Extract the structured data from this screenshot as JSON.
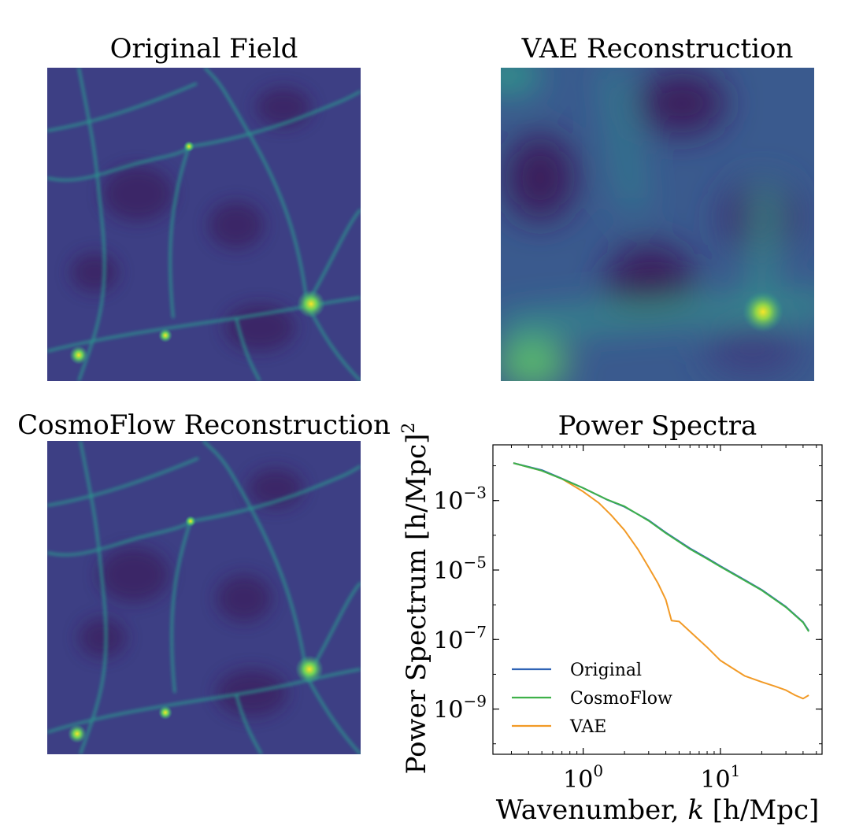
{
  "panels": {
    "original": {
      "title": "Original Field"
    },
    "vae": {
      "title": "VAE Reconstruction"
    },
    "cosmoflow": {
      "title": "CosmoFlow Reconstruction"
    },
    "spectra": {
      "title": "Power Spectra"
    }
  },
  "colors": {
    "field_dark": "#3b1a5c",
    "field_mid": "#3d4f8a",
    "field_filament": "#2fa58a",
    "field_bright": "#f5e52a",
    "original": "#2f63b5",
    "cosmoflow": "#3fb14a",
    "vae": "#f29a26"
  },
  "chart_data": {
    "type": "line",
    "title": "Power Spectra",
    "xlabel": "Wavenumber, k [h/Mpc]",
    "ylabel": "Power Spectrum [h/Mpc]^2",
    "xscale": "log",
    "yscale": "log",
    "xlim": [
      0.22,
      55
    ],
    "ylim": [
      5e-11,
      0.04
    ],
    "xticks": [
      {
        "value": 1,
        "label": "10^0"
      },
      {
        "value": 10,
        "label": "10^1"
      }
    ],
    "yticks": [
      {
        "value": 0.001,
        "label": "10^-3"
      },
      {
        "value": 1e-05,
        "label": "10^-5"
      },
      {
        "value": 1e-07,
        "label": "10^-7"
      },
      {
        "value": 1e-09,
        "label": "10^-9"
      }
    ],
    "legend": {
      "position": "lower-left",
      "entries": [
        "Original",
        "CosmoFlow",
        "VAE"
      ]
    },
    "series": [
      {
        "name": "Original",
        "x": [
          0.31,
          0.5,
          0.7,
          1.0,
          1.5,
          2.0,
          3.0,
          4.0,
          6.0,
          8.0,
          10,
          15,
          20,
          30,
          40,
          44
        ],
        "y": [
          0.012,
          0.0075,
          0.0043,
          0.0023,
          0.00105,
          0.00066,
          0.00027,
          0.00012,
          4.2e-05,
          2.2e-05,
          1.3e-05,
          5.2e-06,
          2.7e-06,
          8.8e-07,
          3.2e-07,
          1.8e-07
        ]
      },
      {
        "name": "CosmoFlow",
        "x": [
          0.31,
          0.5,
          0.7,
          1.0,
          1.5,
          2.0,
          3.0,
          4.0,
          6.0,
          8.0,
          10,
          15,
          20,
          30,
          40,
          44
        ],
        "y": [
          0.012,
          0.0072,
          0.0042,
          0.0023,
          0.00106,
          0.00068,
          0.00026,
          0.000115,
          4e-05,
          2.1e-05,
          1.25e-05,
          5e-06,
          2.6e-06,
          8.5e-07,
          3.1e-07,
          1.7e-07
        ]
      },
      {
        "name": "VAE",
        "x": [
          0.31,
          0.5,
          0.7,
          1.0,
          1.3,
          1.6,
          2.0,
          2.5,
          3.0,
          3.5,
          4.0,
          4.4,
          5.0,
          6.0,
          8.0,
          10,
          15,
          20,
          25,
          30,
          35,
          40,
          44
        ],
        "y": [
          0.012,
          0.0072,
          0.0042,
          0.0018,
          0.00085,
          0.00038,
          0.00014,
          4e-05,
          1.2e-05,
          4.2e-06,
          1.4e-06,
          3.5e-07,
          3.3e-07,
          1.7e-07,
          6e-08,
          2.5e-08,
          9e-09,
          6e-09,
          4.5e-09,
          3.5e-09,
          2.5e-09,
          2e-09,
          2.5e-09
        ]
      }
    ]
  }
}
